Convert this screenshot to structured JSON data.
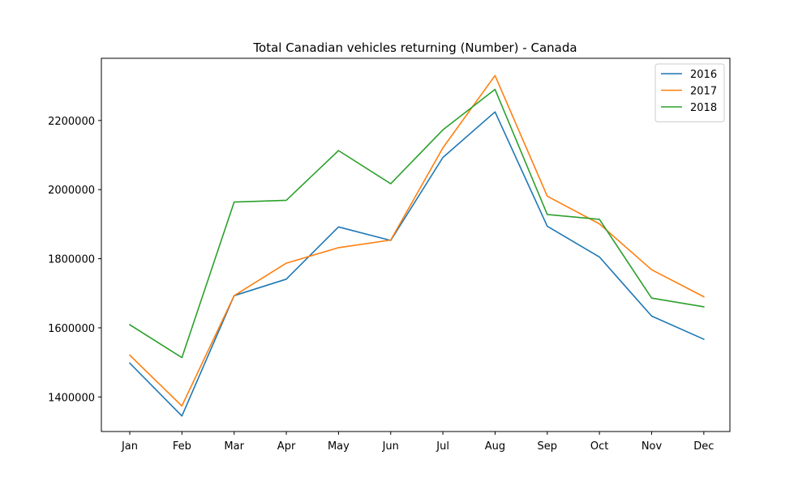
{
  "chart_data": {
    "type": "line",
    "title": "Total Canadian vehicles returning (Number) - Canada",
    "xlabel": "",
    "ylabel": "",
    "categories": [
      "Jan",
      "Feb",
      "Mar",
      "Apr",
      "May",
      "Jun",
      "Jul",
      "Aug",
      "Sep",
      "Oct",
      "Nov",
      "Dec"
    ],
    "ylim": [
      1300000,
      2380000
    ],
    "yticks": [
      1400000,
      1600000,
      1800000,
      2000000,
      2200000
    ],
    "ytick_labels": [
      "1400000",
      "1600000",
      "1800000",
      "2000000",
      "2200000"
    ],
    "grid": false,
    "legend_position": "top-right",
    "series": [
      {
        "name": "2016",
        "color": "#1f77b4",
        "values": [
          1498000,
          1345000,
          1693000,
          1741000,
          1892000,
          1853000,
          2093000,
          2225000,
          1894000,
          1805000,
          1634000,
          1567000
        ]
      },
      {
        "name": "2017",
        "color": "#ff7f0e",
        "values": [
          1521000,
          1374000,
          1693000,
          1787000,
          1832000,
          1854000,
          2121000,
          2330000,
          1981000,
          1901000,
          1768000,
          1690000
        ]
      },
      {
        "name": "2018",
        "color": "#2ca02c",
        "values": [
          1609000,
          1514000,
          1964000,
          1969000,
          2113000,
          2017000,
          2173000,
          2290000,
          1928000,
          1914000,
          1686000,
          1661000
        ]
      }
    ]
  }
}
